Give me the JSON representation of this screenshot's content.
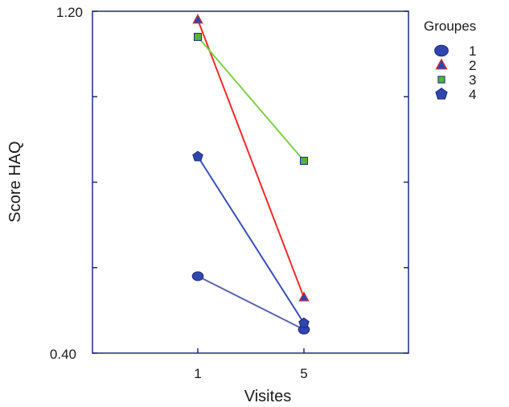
{
  "chart_data": {
    "type": "line",
    "title": "",
    "xlabel": "Visites",
    "ylabel": "Score HAQ",
    "categories": [
      "1",
      "5"
    ],
    "ylim": [
      0.4,
      1.2
    ],
    "y_tick_labels": [
      "0.40",
      "1.20"
    ],
    "legend": {
      "title": "Groupes",
      "position": "right"
    },
    "grid": false,
    "series": [
      {
        "name": "1",
        "marker": "circle",
        "color": "#5a66b0",
        "fill": "#2e46ad",
        "values": [
          0.58,
          0.455
        ]
      },
      {
        "name": "2",
        "marker": "triangle",
        "color": "#ef2b2b",
        "fill": "#2e46ad",
        "values": [
          1.18,
          0.53
        ]
      },
      {
        "name": "3",
        "marker": "square",
        "color": "#7ed14a",
        "fill": "#52b43a",
        "values": [
          1.14,
          0.85
        ]
      },
      {
        "name": "4",
        "marker": "pentagon",
        "color": "#3a50b5",
        "fill": "#2e46ad",
        "values": [
          0.86,
          0.47
        ]
      }
    ]
  }
}
